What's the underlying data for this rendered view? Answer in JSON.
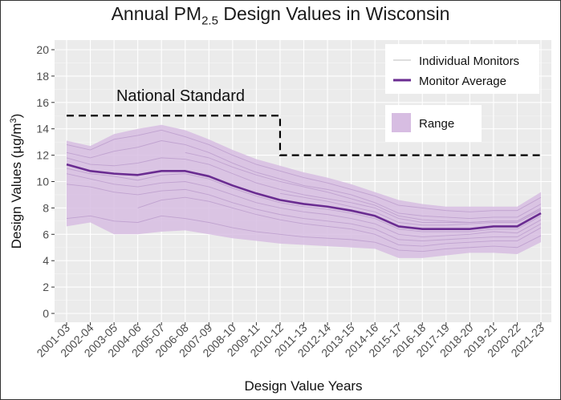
{
  "chart_data": {
    "type": "line",
    "title_main": "Annual PM",
    "title_sub": "2.5",
    "title_rest": " Design Values in Wisconsin",
    "xlabel": "Design Value Years",
    "ylabel_main": "Design Values (µg/m",
    "ylabel_sup": "3",
    "ylabel_end": ")",
    "ylim": [
      0,
      20
    ],
    "yticks": [
      0,
      2,
      4,
      6,
      8,
      10,
      12,
      14,
      16,
      18,
      20
    ],
    "categories": [
      "2001-03",
      "2002-04",
      "2003-05",
      "2004-06",
      "2005-07",
      "2006-08",
      "2007-09",
      "2008-10",
      "2009-11",
      "2010-12",
      "2011-13",
      "2012-14",
      "2013-15",
      "2014-16",
      "2015-17",
      "2016-18",
      "2017-19",
      "2018-20",
      "2019-21",
      "2020-22",
      "2021-23"
    ],
    "series": [
      {
        "name": "Monitor Average",
        "color": "#6a2c91",
        "values": [
          11.3,
          10.8,
          10.6,
          10.5,
          10.8,
          10.8,
          10.4,
          9.7,
          9.1,
          8.6,
          8.3,
          8.1,
          7.8,
          7.4,
          6.6,
          6.4,
          6.4,
          6.4,
          6.6,
          6.6,
          7.6
        ]
      },
      {
        "name": "Range",
        "color": "#d7bde2",
        "max": [
          13.1,
          12.7,
          13.6,
          14.0,
          14.3,
          13.9,
          13.2,
          12.4,
          11.7,
          11.2,
          10.7,
          10.3,
          9.8,
          9.2,
          8.6,
          8.3,
          8.1,
          8.1,
          8.1,
          8.1,
          9.2
        ],
        "min": [
          6.6,
          6.9,
          6.0,
          6.0,
          6.2,
          6.3,
          6.0,
          5.7,
          5.5,
          5.3,
          5.2,
          5.1,
          5.0,
          4.9,
          4.2,
          4.2,
          4.4,
          4.6,
          4.6,
          4.5,
          5.4
        ]
      },
      {
        "name": "Individual Monitors",
        "color": "#b99acb",
        "lines": [
          [
            12.8,
            12.4,
            13.2,
            13.5,
            13.9,
            13.4,
            12.8,
            12.0,
            11.3,
            10.8,
            10.3,
            9.9,
            9.4,
            8.9,
            8.2,
            8.0,
            7.8,
            7.7,
            7.8,
            7.8,
            8.8
          ],
          [
            12.2,
            11.8,
            12.3,
            12.6,
            13.1,
            12.8,
            12.2,
            11.4,
            10.7,
            10.2,
            9.7,
            9.4,
            9.0,
            8.4,
            7.6,
            7.4,
            7.3,
            7.2,
            7.3,
            7.3,
            8.3
          ],
          [
            11.8,
            11.3,
            11.2,
            11.4,
            11.8,
            11.7,
            11.3,
            10.6,
            9.9,
            9.4,
            9.0,
            8.7,
            8.4,
            8.0,
            7.2,
            6.9,
            6.9,
            6.9,
            7.0,
            7.0,
            8.0
          ],
          [
            11.0,
            10.6,
            10.4,
            10.1,
            10.5,
            10.6,
            10.2,
            9.5,
            8.9,
            8.4,
            8.1,
            7.9,
            7.6,
            7.2,
            6.4,
            6.2,
            6.2,
            6.2,
            6.4,
            6.4,
            7.4
          ],
          [
            10.6,
            10.2,
            9.8,
            9.6,
            9.9,
            10.0,
            9.6,
            9.0,
            8.4,
            8.0,
            7.7,
            7.5,
            7.2,
            6.8,
            6.0,
            5.8,
            5.9,
            6.0,
            6.2,
            6.1,
            7.1
          ],
          [
            9.8,
            9.6,
            9.2,
            9.0,
            9.3,
            9.4,
            9.0,
            8.4,
            7.9,
            7.5,
            7.2,
            7.0,
            6.8,
            6.4,
            5.6,
            5.5,
            5.6,
            5.7,
            5.8,
            5.8,
            6.8
          ],
          [
            null,
            null,
            null,
            8.0,
            8.6,
            8.8,
            8.5,
            8.0,
            7.5,
            7.1,
            6.8,
            6.6,
            6.4,
            6.0,
            5.2,
            5.1,
            5.3,
            5.4,
            5.5,
            5.5,
            6.5
          ],
          [
            7.2,
            7.4,
            7.0,
            6.9,
            7.4,
            7.2,
            6.9,
            6.5,
            6.2,
            6.0,
            5.8,
            5.7,
            5.6,
            5.4,
            4.8,
            4.7,
            4.9,
            5.0,
            5.1,
            5.0,
            5.9
          ],
          [
            null,
            null,
            null,
            null,
            null,
            12.2,
            11.8,
            11.1,
            10.5,
            10.0,
            9.6,
            9.2,
            8.7,
            8.2,
            7.4,
            7.1,
            7.0,
            6.9,
            7.0,
            7.0,
            7.9
          ],
          [
            null,
            null,
            null,
            null,
            null,
            null,
            null,
            null,
            null,
            9.1,
            8.8,
            8.5,
            8.1,
            7.7,
            6.9,
            6.7,
            6.7,
            6.8,
            6.9,
            6.9,
            7.8
          ]
        ]
      },
      {
        "name": "National Standard",
        "color": "#000000",
        "values": [
          15,
          15,
          15,
          15,
          15,
          15,
          15,
          15,
          15,
          15,
          12,
          12,
          12,
          12,
          12,
          12,
          12,
          12,
          12,
          12,
          12
        ]
      }
    ],
    "annotation": "National Standard",
    "legend": {
      "position": "top-right",
      "individual_label": "Individual Monitors",
      "average_label": "Monitor Average",
      "range_label": "Range"
    },
    "grid": true,
    "panel_bg": "#ebebeb"
  }
}
